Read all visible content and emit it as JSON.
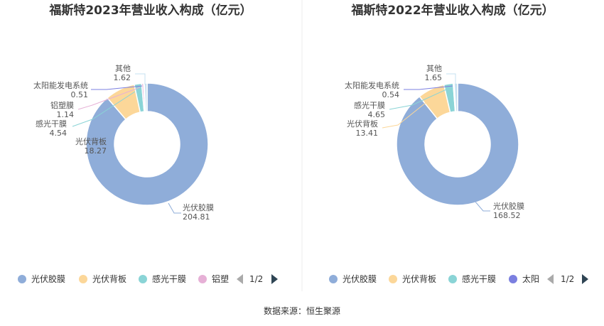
{
  "chart_data": [
    {
      "type": "pie",
      "title": "福斯特2023年营业收入构成（亿元）",
      "slices": [
        {
          "name": "光伏胶膜",
          "value": 204.81,
          "label_value": "204.81",
          "color": "#8fadd9"
        },
        {
          "name": "光伏背板",
          "value": 18.27,
          "label_value": "18.27",
          "color": "#fcd799"
        },
        {
          "name": "感光干膜",
          "value": 4.54,
          "label_value": "4.54",
          "color": "#8ad4d6"
        },
        {
          "name": "铝塑膜",
          "value": 1.14,
          "label_value": "1.14",
          "color": "#e6b0d6"
        },
        {
          "name": "太阳能发电系统",
          "value": 0.51,
          "label_value": "0.51",
          "color": "#7b7fe0"
        },
        {
          "name": "其他",
          "value": 1.62,
          "label_value": "1.62",
          "color": "#c5e0f0"
        }
      ],
      "legend": {
        "items": [
          "光伏胶膜",
          "光伏背板",
          "感光干膜",
          "铝塑"
        ],
        "page": "1/2",
        "placement": "bottom"
      }
    },
    {
      "type": "pie",
      "title": "福斯特2022年营业收入构成（亿元）",
      "slices": [
        {
          "name": "光伏胶膜",
          "value": 168.52,
          "label_value": "168.52",
          "color": "#8fadd9"
        },
        {
          "name": "光伏背板",
          "value": 13.41,
          "label_value": "13.41",
          "color": "#fcd799"
        },
        {
          "name": "感光干膜",
          "value": 4.65,
          "label_value": "4.65",
          "color": "#8ad4d6"
        },
        {
          "name": "太阳能发电系统",
          "value": 0.54,
          "label_value": "0.54",
          "color": "#7b7fe0"
        },
        {
          "name": "其他",
          "value": 1.65,
          "label_value": "1.65",
          "color": "#c5e0f0"
        }
      ],
      "legend": {
        "items": [
          "光伏胶膜",
          "光伏背板",
          "感光干膜",
          "太阳"
        ],
        "page": "1/2",
        "placement": "bottom"
      }
    }
  ],
  "footer": {
    "source": "数据来源：恒生聚源"
  }
}
